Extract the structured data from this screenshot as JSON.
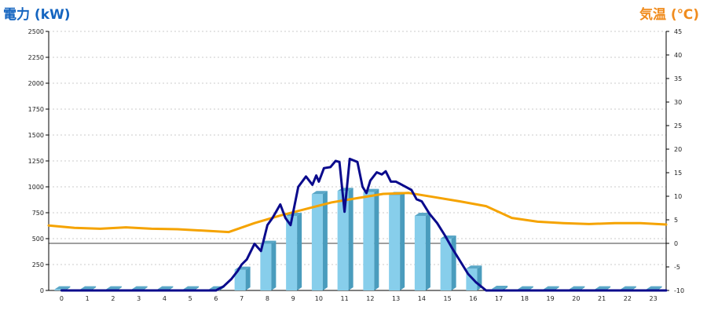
{
  "colors": {
    "left_title": "#1565c0",
    "right_title": "#f08c1e",
    "bar_face": "#87ceeb",
    "bar_side": "#4a9cbd",
    "bar_top": "#5aa7c7",
    "power_line": "#0a0a8c",
    "temp_line": "#f5a300",
    "grid": "#bbbbbb",
    "zero_line": "#000000"
  },
  "chart_data": {
    "type": "bar+line",
    "title_left": "電力 (kW)",
    "title_right": "気温 (℃)",
    "categories": [
      "0",
      "1",
      "2",
      "3",
      "4",
      "5",
      "6",
      "7",
      "8",
      "9",
      "10",
      "11",
      "12",
      "13",
      "14",
      "15",
      "16",
      "17",
      "18",
      "19",
      "20",
      "21",
      "22",
      "23"
    ],
    "y_left": {
      "min": 0,
      "max": 2500,
      "ticks": [
        "0",
        "250",
        "500",
        "750",
        "1000",
        "1250",
        "1500",
        "1750",
        "2000",
        "2250",
        "2500"
      ]
    },
    "y_right": {
      "min": -10,
      "max": 45,
      "ticks": [
        "-10",
        "-5",
        "0",
        "5",
        "10",
        "15",
        "20",
        "25",
        "30",
        "35",
        "40",
        "45"
      ]
    },
    "grid": true,
    "bars": {
      "axis": "left",
      "values": [
        10,
        10,
        10,
        10,
        10,
        10,
        10,
        200,
        450,
        720,
        930,
        960,
        950,
        920,
        720,
        500,
        210,
        15,
        10,
        10,
        10,
        10,
        10,
        10
      ]
    },
    "power_line": {
      "axis": "left",
      "points": [
        [
          0,
          0
        ],
        [
          6,
          0
        ],
        [
          6.3,
          40
        ],
        [
          6.6,
          110
        ],
        [
          6.85,
          190
        ],
        [
          7,
          250
        ],
        [
          7.2,
          300
        ],
        [
          7.5,
          450
        ],
        [
          7.75,
          380
        ],
        [
          8,
          630
        ],
        [
          8.2,
          700
        ],
        [
          8.5,
          830
        ],
        [
          8.7,
          700
        ],
        [
          8.9,
          630
        ],
        [
          9.2,
          1000
        ],
        [
          9.5,
          1100
        ],
        [
          9.75,
          1020
        ],
        [
          9.9,
          1110
        ],
        [
          10,
          1050
        ],
        [
          10.2,
          1180
        ],
        [
          10.45,
          1190
        ],
        [
          10.65,
          1250
        ],
        [
          10.8,
          1240
        ],
        [
          11,
          760
        ],
        [
          11.2,
          1270
        ],
        [
          11.5,
          1240
        ],
        [
          11.7,
          1000
        ],
        [
          11.85,
          940
        ],
        [
          12,
          1060
        ],
        [
          12.25,
          1140
        ],
        [
          12.45,
          1120
        ],
        [
          12.6,
          1150
        ],
        [
          12.8,
          1050
        ],
        [
          13,
          1050
        ],
        [
          13.3,
          1010
        ],
        [
          13.6,
          970
        ],
        [
          13.8,
          880
        ],
        [
          14,
          860
        ],
        [
          14.3,
          740
        ],
        [
          14.6,
          650
        ],
        [
          14.9,
          530
        ],
        [
          15.2,
          400
        ],
        [
          15.5,
          280
        ],
        [
          15.8,
          160
        ],
        [
          16.1,
          80
        ],
        [
          16.5,
          0
        ],
        [
          23.5,
          0
        ]
      ]
    },
    "temp_line": {
      "axis": "right",
      "points": [
        [
          -0.5,
          3.8
        ],
        [
          0.5,
          3.3
        ],
        [
          1.5,
          3.1
        ],
        [
          2.5,
          3.4
        ],
        [
          3.5,
          3.1
        ],
        [
          4.5,
          3.0
        ],
        [
          5.5,
          2.7
        ],
        [
          6.5,
          2.4
        ],
        [
          7.5,
          4.3
        ],
        [
          8.5,
          5.9
        ],
        [
          9.5,
          7.3
        ],
        [
          10.5,
          8.7
        ],
        [
          11.5,
          9.6
        ],
        [
          12.5,
          10.5
        ],
        [
          13.5,
          10.7
        ],
        [
          14.5,
          9.8
        ],
        [
          15.5,
          8.9
        ],
        [
          16.5,
          7.9
        ],
        [
          17.5,
          5.4
        ],
        [
          18.5,
          4.6
        ],
        [
          19.5,
          4.3
        ],
        [
          20.5,
          4.1
        ],
        [
          21.5,
          4.3
        ],
        [
          22.5,
          4.3
        ],
        [
          23.5,
          4.0
        ]
      ]
    }
  }
}
